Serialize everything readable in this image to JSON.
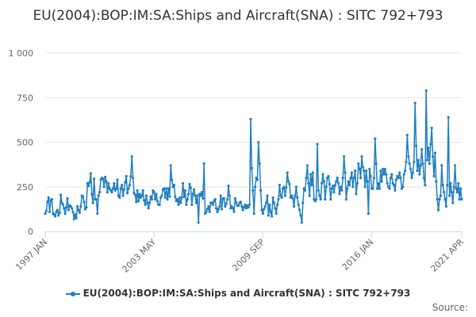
{
  "chart_data": {
    "type": "line",
    "title": "EU(2004):BOP:IM:SA:Ships and Aircraft(SNA) : SITC 792+793",
    "xlabel": "",
    "ylabel": "",
    "ylim": [
      0,
      1000
    ],
    "yticks": [
      0,
      250,
      500,
      750,
      1000
    ],
    "ytick_labels": [
      "0",
      "250",
      "500",
      "750",
      "1 000"
    ],
    "xticks": [
      {
        "label": "1997 JAN",
        "x": "1997-01"
      },
      {
        "label": "2003 MAY",
        "x": "2003-05"
      },
      {
        "label": "2009 SEP",
        "x": "2009-09"
      },
      {
        "label": "2016 JAN",
        "x": "2016-01"
      },
      {
        "label": "2021 APR",
        "x": "2021-04"
      }
    ],
    "x_start": "1997-01",
    "x_end": "2021-04",
    "series": [
      {
        "name": "EU(2004):BOP:IM:SA:Ships and Aircraft(SNA) : SITC 792+793",
        "color": "#1f7fbf",
        "values": [
          100,
          115,
          165,
          190,
          110,
          175,
          180,
          100,
          95,
          85,
          110,
          120,
          90,
          105,
          205,
          160,
          150,
          130,
          100,
          135,
          185,
          120,
          145,
          140,
          130,
          110,
          70,
          95,
          75,
          140,
          120,
          105,
          140,
          200,
          195,
          165,
          125,
          135,
          270,
          255,
          275,
          325,
          210,
          160,
          295,
          180,
          180,
          100,
          200,
          220,
          290,
          300,
          295,
          250,
          305,
          280,
          220,
          270,
          240,
          230,
          220,
          240,
          270,
          230,
          240,
          290,
          200,
          190,
          240,
          260,
          200,
          235,
          275,
          310,
          215,
          240,
          260,
          310,
          420,
          300,
          215,
          205,
          165,
          230,
          170,
          210,
          190,
          200,
          230,
          175,
          150,
          200,
          160,
          130,
          160,
          195,
          180,
          230,
          220,
          180,
          210,
          170,
          150,
          150,
          190,
          200,
          235,
          240,
          190,
          240,
          180,
          240,
          195,
          370,
          290,
          250,
          260,
          195,
          170,
          180,
          150,
          190,
          160,
          190,
          270,
          195,
          230,
          150,
          180,
          210,
          265,
          245,
          150,
          210,
          235,
          200,
          160,
          200,
          50,
          210,
          200,
          220,
          185,
          380,
          100,
          110,
          125,
          140,
          110,
          160,
          160,
          150,
          170,
          180,
          130,
          110,
          125,
          140,
          200,
          125,
          185,
          185,
          140,
          155,
          180,
          255,
          200,
          130,
          140,
          130,
          110,
          185,
          160,
          145,
          145,
          160,
          165,
          140,
          120,
          135,
          150,
          130,
          145,
          135,
          150,
          630,
          355,
          230,
          100,
          250,
          300,
          290,
          500,
          380,
          230,
          120,
          100,
          125,
          140,
          160,
          200,
          90,
          150,
          110,
          85,
          190,
          160,
          130,
          100,
          150,
          180,
          260,
          200,
          190,
          240,
          250,
          200,
          245,
          330,
          280,
          265,
          190,
          200,
          185,
          140,
          200,
          250,
          190,
          150,
          120,
          90,
          50,
          160,
          240,
          230,
          300,
          370,
          270,
          200,
          320,
          260,
          330,
          180,
          170,
          180,
          490,
          230,
          200,
          180,
          270,
          320,
          280,
          180,
          250,
          300,
          310,
          265,
          180,
          240,
          255,
          220,
          260,
          280,
          300,
          270,
          210,
          250,
          230,
          300,
          420,
          330,
          180,
          240,
          280,
          260,
          300,
          330,
          250,
          300,
          340,
          210,
          270,
          380,
          350,
          300,
          420,
          360,
          340,
          250,
          340,
          280,
          100,
          350,
          310,
          240,
          240,
          300,
          520,
          380,
          240,
          270,
          240,
          340,
          280,
          350,
          320,
          350,
          320,
          270,
          250,
          240,
          300,
          320,
          270,
          260,
          230,
          290,
          310,
          300,
          330,
          300,
          240,
          250,
          320,
          340,
          390,
          540,
          420,
          380,
          350,
          300,
          330,
          390,
          720,
          480,
          340,
          400,
          320,
          370,
          460,
          380,
          300,
          260,
          790,
          400,
          470,
          380,
          490,
          580,
          420,
          310,
          440,
          280,
          180,
          120,
          180,
          200,
          370,
          260,
          220,
          180,
          140,
          260,
          640,
          200,
          270,
          220,
          160,
          250,
          370,
          240,
          220,
          270,
          180,
          240,
          180
        ],
        "x_end_value": "2021-04"
      }
    ],
    "legend": {
      "label": "EU(2004):BOP:IM:SA:Ships and Aircraft(SNA) : SITC 792+793",
      "position": "bottom-center"
    },
    "grid": true,
    "source_label": "Source:"
  }
}
